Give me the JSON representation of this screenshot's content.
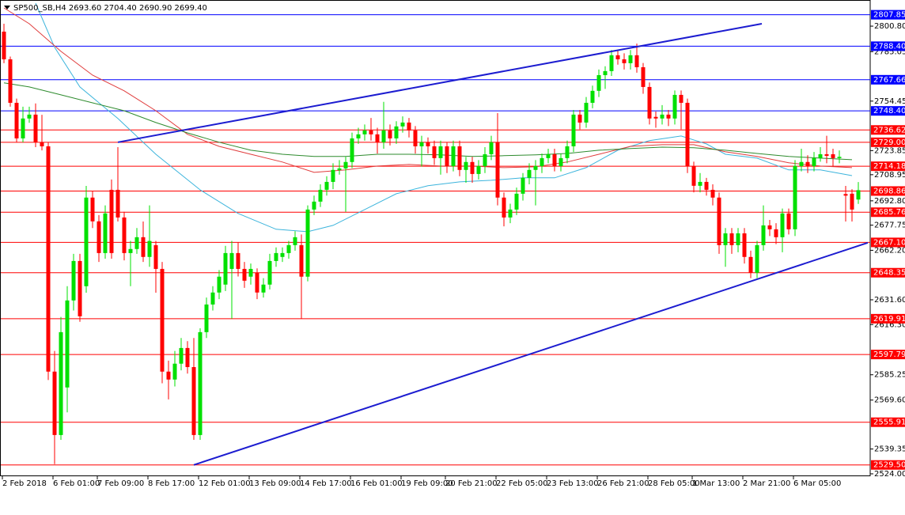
{
  "chart_data": {
    "type": "candlestick",
    "title": "SP500_SB,H4 2693.60 2704.40 2690.90 2699.40",
    "up_color": "#00e000",
    "down_color": "#ff0000",
    "ylim": [
      2523.0,
      2815.5
    ],
    "yticks": [
      {
        "value": 2800.8,
        "label": "2800.80"
      },
      {
        "value": 2785.05,
        "label": "2785.05"
      },
      {
        "value": 2754.45,
        "label": "2754.45"
      },
      {
        "value": 2723.85,
        "label": "2723.85"
      },
      {
        "value": 2708.95,
        "label": "2708.95"
      },
      {
        "value": 2692.8,
        "label": "2692.80"
      },
      {
        "value": 2677.75,
        "label": "2677.75"
      },
      {
        "value": 2662.2,
        "label": "2662.20"
      },
      {
        "value": 2631.6,
        "label": "2631.60"
      },
      {
        "value": 2616.3,
        "label": "2616.30"
      },
      {
        "value": 2585.25,
        "label": "2585.25"
      },
      {
        "value": 2569.6,
        "label": "2569.60"
      },
      {
        "value": 2539.35,
        "label": "2539.35"
      },
      {
        "value": 2524,
        "label": "2524.00"
      }
    ],
    "categories": [
      "2 Feb 2018",
      null,
      null,
      null,
      null,
      null,
      null,
      null,
      "6 Feb 01:00",
      null,
      null,
      null,
      null,
      null,
      null,
      "7 Feb 09:00",
      null,
      null,
      null,
      null,
      null,
      null,
      null,
      "8 Feb 17:00",
      null,
      null,
      null,
      null,
      null,
      null,
      null,
      "12 Feb 01:00",
      null,
      null,
      null,
      null,
      null,
      null,
      null,
      "13 Feb 09:00",
      null,
      null,
      null,
      null,
      null,
      null,
      null,
      "14 Feb 17:00",
      null,
      null,
      null,
      null,
      null,
      null,
      null,
      "16 Feb 01:00",
      null,
      null,
      null,
      null,
      null,
      null,
      null,
      "19 Feb 09:00",
      null,
      null,
      null,
      null,
      null,
      null,
      "20 Feb 21:00",
      null,
      null,
      null,
      null,
      null,
      null,
      null,
      "22 Feb 05:00",
      null,
      null,
      null,
      null,
      null,
      null,
      null,
      "23 Feb 13:00",
      null,
      null,
      null,
      null,
      null,
      null,
      null,
      "26 Feb 21:00",
      null,
      null,
      null,
      null,
      null,
      null,
      null,
      "28 Feb 05:00",
      null,
      null,
      null,
      null,
      null,
      null,
      "1 Mar 13:00",
      null,
      null,
      null,
      null,
      null,
      null,
      null,
      "2 Mar 21:00",
      null,
      null,
      null,
      null,
      null,
      null,
      null,
      "6 Mar 05:00",
      null,
      null,
      null,
      null,
      null,
      null,
      null,
      null,
      null,
      null
    ],
    "open": [
      2797.4,
      2780.3,
      2753.4,
      2731.4,
      2743.7,
      2746.1,
      2729.0,
      2726.5,
      2587.2,
      2548,
      2577.4,
      2631.2,
      2655.6,
      2640,
      2694.8,
      2680.1,
      2660.5,
      2699.6,
      2699.6,
      2682.5,
      2660.5,
      2663,
      2670.3,
      2658.1,
      2665.4,
      2650.7,
      2587.2,
      2582.3,
      2592.1,
      2601.8,
      2590,
      2548,
      2611.6,
      2628.7,
      2636.1,
      2641,
      2650.7,
      2660.5,
      2650.7,
      2645.9,
      2648.3,
      2636.1,
      2641,
      2655.6,
      2658.1,
      2660.5,
      2665.4,
      2665.4,
      2645.9,
      2687.4,
      2692.3,
      2699.6,
      2704.5,
      2711.9,
      2712.8,
      2716.8,
      2731.4,
      2733.9,
      2736.3,
      2733.9,
      2729,
      2736.3,
      2731.4,
      2738.8,
      2741.2,
      2736.3,
      2726.5,
      2729,
      2726.5,
      2719.2,
      2726.5,
      2714.3,
      2726.5,
      2711.9,
      2716.8,
      2709.4,
      2714.3,
      2721.6,
      2729,
      2694.8,
      2682.5,
      2687.4,
      2697.2,
      2707,
      2711.9,
      2714.3,
      2719.2,
      2721.6,
      2714.3,
      2719.2,
      2726.5,
      2746.1,
      2741.2,
      2753.4,
      2760.8,
      2770.5,
      2773,
      2782.8,
      2780.3,
      2777.9,
      2782.8,
      2775.4,
      2763.2,
      2744.7,
      2743.7,
      2746.1,
      2743.7,
      2758.3,
      2753.4,
      2714.3,
      2702.1,
      2704.5,
      2699.6,
      2694.8,
      2665.4,
      2672.7,
      2665.4,
      2672.7,
      2658.1,
      2648.3,
      2665.4,
      2677.6,
      2675.2,
      2670.3,
      2685,
      2675.2,
      2714.3,
      2716.8,
      2714.3,
      2719.2,
      2721.6,
      2721.6,
      2719.2,
      2697,
      2697.2,
      2693.6
    ],
    "high": [
      2802.3,
      2782,
      2756,
      2751,
      2751,
      2753,
      2746,
      2729,
      2600,
      2621,
      2640,
      2660,
      2660,
      2702,
      2699,
      2684,
      2690,
      2706,
      2726,
      2686,
      2668,
      2676,
      2680,
      2690,
      2668,
      2655,
      2594,
      2600,
      2608,
      2606,
      2608,
      2614,
      2633,
      2640,
      2650,
      2665,
      2668,
      2667,
      2655,
      2654,
      2651,
      2645,
      2660,
      2664,
      2664,
      2668,
      2674,
      2672,
      2690,
      2696,
      2703,
      2708,
      2716,
      2718,
      2720,
      2735,
      2738,
      2740,
      2744,
      2738,
      2754,
      2740,
      2742,
      2745,
      2744,
      2739,
      2733,
      2732,
      2730,
      2730,
      2729,
      2730,
      2730,
      2720,
      2720,
      2718,
      2726,
      2733,
      2747,
      2698,
      2691,
      2701,
      2710,
      2716,
      2718,
      2722,
      2725,
      2725,
      2722,
      2730,
      2749,
      2749,
      2757,
      2764,
      2774,
      2776,
      2786,
      2786,
      2784,
      2786,
      2790,
      2778,
      2766,
      2748,
      2752,
      2749,
      2761,
      2761,
      2756,
      2717,
      2710,
      2707,
      2703,
      2698,
      2676,
      2676,
      2676,
      2676,
      2662,
      2668,
      2690,
      2681,
      2679,
      2688,
      2688,
      2718,
      2725,
      2721,
      2723,
      2726,
      2733,
      2725,
      2724,
      2702,
      2700,
      2704.4
    ],
    "low": [
      2777.9,
      2751,
      2729,
      2729,
      2741,
      2726,
      2724,
      2582,
      2530,
      2545,
      2562,
      2625,
      2618,
      2636,
      2676,
      2655,
      2657,
      2657,
      2680,
      2656,
      2640,
      2660,
      2655,
      2652,
      2636,
      2580,
      2570,
      2578,
      2588,
      2586,
      2545,
      2545,
      2608,
      2625,
      2632,
      2637,
      2620,
      2646,
      2639,
      2641,
      2632,
      2633,
      2638,
      2652,
      2655,
      2657,
      2662,
      2620,
      2643,
      2684,
      2689,
      2696,
      2700,
      2709,
      2686,
      2713,
      2728,
      2730,
      2730,
      2722,
      2725,
      2727,
      2728,
      2735,
      2732,
      2722,
      2714,
      2722,
      2715,
      2709,
      2710,
      2711,
      2708,
      2704,
      2704,
      2706,
      2710,
      2718,
      2690,
      2677,
      2679,
      2684,
      2693,
      2703,
      2690,
      2710,
      2716,
      2711,
      2711,
      2716,
      2723,
      2737,
      2738,
      2750,
      2757,
      2762,
      2770,
      2777,
      2774,
      2774,
      2772,
      2759,
      2740,
      2738,
      2740,
      2739,
      2740,
      2737,
      2710,
      2698,
      2698,
      2696,
      2690,
      2660,
      2652,
      2660,
      2661,
      2654,
      2645,
      2645,
      2662,
      2671,
      2666,
      2661,
      2672,
      2671,
      2711,
      2710,
      2711,
      2717,
      2716,
      2714,
      2716,
      2680,
      2680,
      2690.9
    ],
    "close": [
      2780.3,
      2753.4,
      2731.4,
      2743.7,
      2746.1,
      2729.0,
      2726.5,
      2587.2,
      2548,
      2611.6,
      2631.2,
      2655.6,
      2621.4,
      2694.8,
      2680.1,
      2660.5,
      2685,
      2660.5,
      2682.5,
      2660.5,
      2663,
      2670.3,
      2658.1,
      2668,
      2650.7,
      2587.2,
      2582.3,
      2592.1,
      2601.8,
      2590,
      2548,
      2611.6,
      2628.7,
      2636.1,
      2645.9,
      2660.5,
      2660.5,
      2650.7,
      2643.4,
      2650.7,
      2636.1,
      2641,
      2655.6,
      2660.5,
      2660.5,
      2665.4,
      2670.3,
      2645.9,
      2687.4,
      2692.3,
      2699.6,
      2704.5,
      2711.9,
      2712.8,
      2716.8,
      2731.4,
      2733.9,
      2736.3,
      2733.9,
      2729,
      2736.3,
      2731.4,
      2738.8,
      2741.2,
      2736.3,
      2726.5,
      2729,
      2726.5,
      2719.2,
      2726.5,
      2714.3,
      2726.5,
      2711.9,
      2716.8,
      2709.4,
      2714.3,
      2721.6,
      2729,
      2694.8,
      2682.5,
      2687.4,
      2697.2,
      2707,
      2711.9,
      2714.3,
      2719.2,
      2721.6,
      2714.3,
      2719.2,
      2726.5,
      2746.1,
      2741.2,
      2753.4,
      2760.8,
      2770.5,
      2773,
      2782.8,
      2780.3,
      2777.9,
      2782.8,
      2775.4,
      2763.2,
      2743.7,
      2743.7,
      2746.1,
      2743.7,
      2758.3,
      2753.4,
      2714.3,
      2702.1,
      2704.5,
      2699.6,
      2694.8,
      2665.4,
      2672.7,
      2665.4,
      2672.7,
      2658.1,
      2648.3,
      2665.4,
      2677.6,
      2675.2,
      2670.3,
      2685,
      2675.2,
      2714.3,
      2716.8,
      2714.3,
      2719.2,
      2721.6,
      2720.6,
      2719.2,
      2720,
      2696,
      2687.4,
      2699.4
    ],
    "lines": [
      {
        "color": "#3cb4dc",
        "x": [
          5,
          8,
          12,
          18,
          24,
          31,
          37,
          43,
          48,
          52,
          57,
          62,
          67,
          72,
          77,
          82,
          87,
          92,
          97,
          102,
          107,
          111,
          114,
          119,
          124,
          129,
          134
        ],
        "values": [
          2815,
          2787.7,
          2763.2,
          2743.7,
          2721.6,
          2699.6,
          2685.0,
          2675.2,
          2673.7,
          2677.6,
          2687.4,
          2697.2,
          2702.1,
          2704.5,
          2705.5,
          2707.0,
          2707.0,
          2713.3,
          2724.1,
          2730.0,
          2732.9,
          2728.0,
          2721.6,
          2719.2,
          2711.9,
          2711.9,
          2708.4
        ]
      },
      {
        "color": "#e03c3c",
        "x": [
          0,
          4,
          9,
          14,
          19,
          24,
          29,
          34,
          39,
          44,
          49,
          54,
          59,
          64,
          69,
          74,
          79,
          84,
          89,
          94,
          99,
          104,
          109,
          114,
          119,
          124,
          129,
          134
        ],
        "values": [
          2812.1,
          2802.3,
          2785.2,
          2770.5,
          2760.8,
          2748.5,
          2733.9,
          2726.5,
          2721.6,
          2716.8,
          2710.4,
          2711.9,
          2714.3,
          2715.3,
          2714.3,
          2714.3,
          2713.3,
          2713.8,
          2716.8,
          2721.6,
          2726.5,
          2727.5,
          2727.5,
          2723.1,
          2720.2,
          2716.3,
          2714.3,
          2713.3
        ]
      },
      {
        "color": "#2e8b2e",
        "x": [
          0,
          4,
          9,
          14,
          19,
          24,
          29,
          34,
          39,
          44,
          49,
          54,
          59,
          64,
          69,
          74,
          79,
          84,
          89,
          94,
          99,
          104,
          109,
          114,
          119,
          124,
          129,
          134
        ],
        "values": [
          2765.7,
          2763.2,
          2758.3,
          2753.4,
          2748.5,
          2741.2,
          2734.8,
          2729.0,
          2724.1,
          2721.6,
          2720.2,
          2720.2,
          2721.6,
          2721.6,
          2721.2,
          2720.2,
          2720.7,
          2721.2,
          2722.1,
          2724.1,
          2725.1,
          2726.0,
          2725.6,
          2724.1,
          2722.1,
          2720.2,
          2719.2,
          2718.2
        ]
      }
    ],
    "trendlines": [
      {
        "color": "#1c1cd0",
        "x": [
          18,
          119.75
        ],
        "values": [
          2729,
          2802.3
        ]
      },
      {
        "color": "#1c1cd0",
        "x": [
          30,
          136.5
        ],
        "values": [
          2529.5,
          2666.9
        ]
      }
    ],
    "hlines": [
      {
        "value": 2807.85,
        "label": "2807.85",
        "color": "#0000ff"
      },
      {
        "value": 2788.4,
        "label": "2788.40",
        "color": "#0000ff"
      },
      {
        "value": 2767.66,
        "label": "2767.66",
        "color": "#0000ff"
      },
      {
        "value": 2748.4,
        "label": "2748.40",
        "color": "#0000ff"
      },
      {
        "value": 2736.62,
        "label": "2736.62",
        "color": "#ff0000"
      },
      {
        "value": 2729,
        "label": "2729.00",
        "color": "#ff0000"
      },
      {
        "value": 2714.18,
        "label": "2714.18",
        "color": "#ff0000"
      },
      {
        "value": 2698.86,
        "label": "2698.86",
        "color": "#ff0000"
      },
      {
        "value": 2685.76,
        "label": "2685.76",
        "color": "#ff0000"
      },
      {
        "value": 2667.1,
        "label": "2667.10",
        "color": "#ff0000"
      },
      {
        "value": 2648.35,
        "label": "2648.35",
        "color": "#ff0000"
      },
      {
        "value": 2619.91,
        "label": "2619.91",
        "color": "#ff0000"
      },
      {
        "value": 2597.79,
        "label": "2597.79",
        "color": "#ff0000"
      },
      {
        "value": 2555.91,
        "label": "2555.91",
        "color": "#ff0000"
      },
      {
        "value": 2529.5,
        "label": "2529.50",
        "color": "#ff0000"
      }
    ]
  }
}
